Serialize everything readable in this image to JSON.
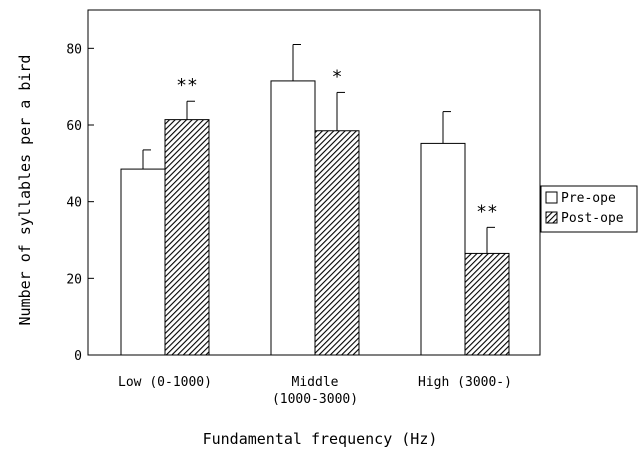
{
  "chart_data": {
    "type": "bar",
    "categories": [
      [
        "Low (0-1000)"
      ],
      [
        "Middle",
        "(1000-3000)"
      ],
      [
        "High (3000-)"
      ]
    ],
    "series": [
      {
        "name": "Pre-ope",
        "values": [
          48.5,
          71.5,
          55.2
        ],
        "errors": [
          5.0,
          9.5,
          8.3
        ],
        "fill": "#ffffff"
      },
      {
        "name": "Post-ope",
        "values": [
          61.4,
          58.5,
          26.5
        ],
        "errors": [
          4.8,
          10.0,
          6.8
        ],
        "fill": "hatch"
      }
    ],
    "significance": [
      {
        "category": 0,
        "series": 1,
        "label": "**"
      },
      {
        "category": 1,
        "series": 1,
        "label": "*"
      },
      {
        "category": 2,
        "series": 1,
        "label": "**"
      }
    ],
    "xlabel": "Fundamental frequency (Hz)",
    "ylabel": "Number of syllables per a bird",
    "ylim": [
      0,
      90
    ],
    "yticks": [
      0,
      20,
      40,
      60,
      80
    ],
    "legend_position": "right",
    "grid": false
  }
}
